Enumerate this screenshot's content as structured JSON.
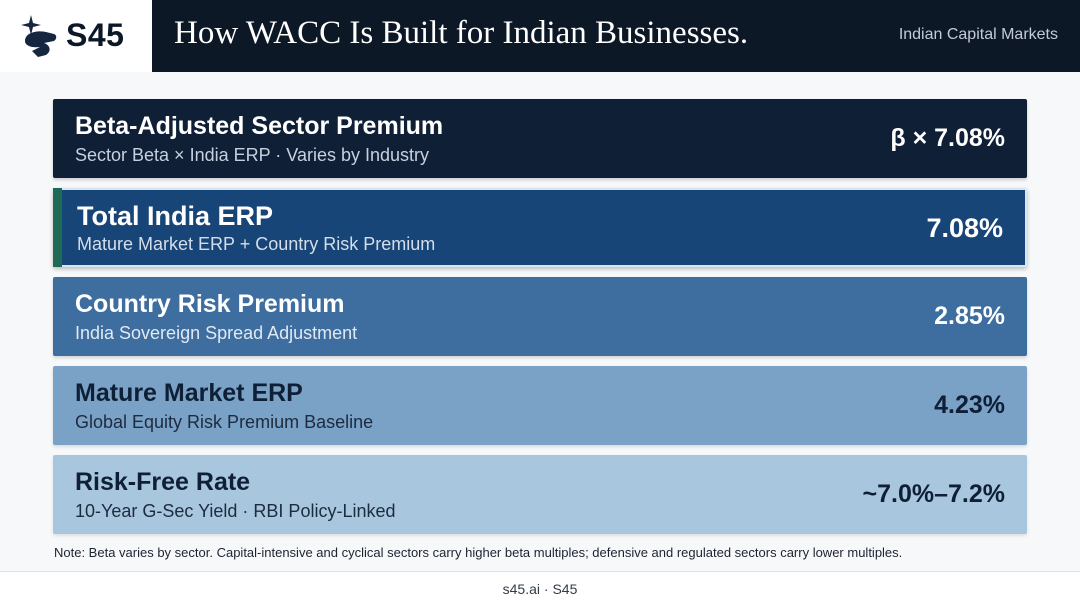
{
  "brand": {
    "name": "S45",
    "icon": "s45-logo-icon"
  },
  "header": {
    "title": "How WACC Is Built for Indian Businesses.",
    "tagline": "Indian Capital Markets"
  },
  "rows": [
    {
      "title": "Beta-Adjusted Sector Premium",
      "subtitle": "Sector Beta × India ERP · Varies by Industry",
      "value": "β × 7.08%"
    },
    {
      "title": "Total India ERP",
      "subtitle": "Mature Market ERP + Country Risk Premium",
      "value": "7.08%"
    },
    {
      "title": "Country Risk Premium",
      "subtitle": "India Sovereign Spread Adjustment",
      "value": "2.85%"
    },
    {
      "title": "Mature Market ERP",
      "subtitle": "Global Equity Risk Premium Baseline",
      "value": "4.23%"
    },
    {
      "title": "Risk-Free Rate",
      "subtitle": "10-Year G-Sec Yield · RBI Policy-Linked",
      "value": "~7.0%–7.2%"
    }
  ],
  "note": "Note: Beta varies by sector. Capital-intensive and cyclical sectors carry higher beta multiples; defensive and regulated sectors carry lower multiples.",
  "footer": "s45.ai · S45",
  "colors": {
    "header_bg": "#0d1826",
    "row_1": "#0f1f36",
    "row_2": "#184578",
    "row_2_accent": "#1d6b57",
    "row_3": "#3d6e9f",
    "row_4": "#7aa1c6",
    "row_5": "#a8c6dd"
  }
}
